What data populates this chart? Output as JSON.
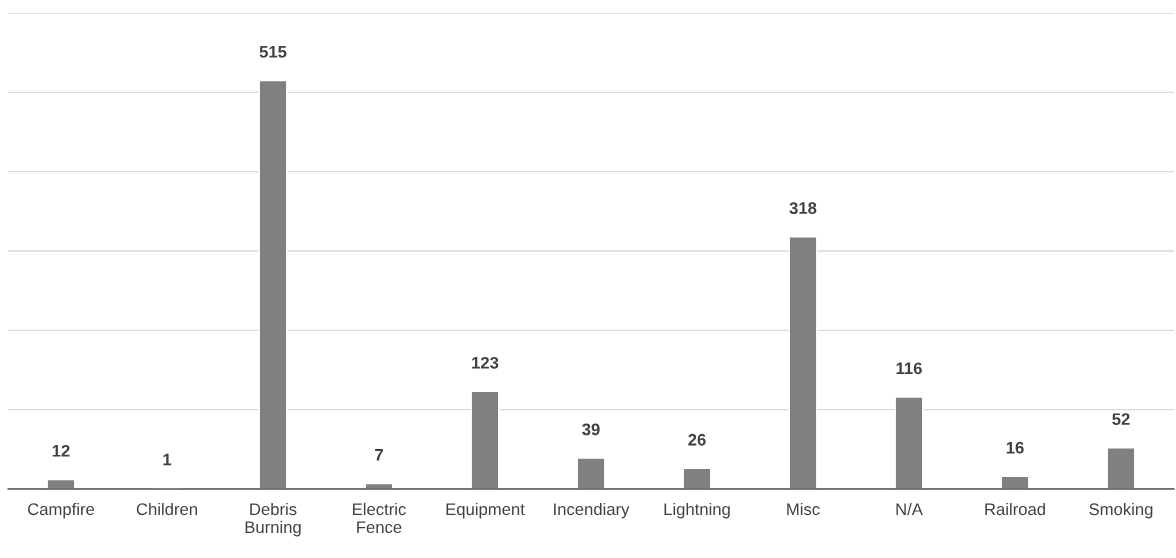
{
  "chart_data": {
    "type": "bar",
    "categories": [
      "Campfire",
      "Children",
      "Debris Burning",
      "Electric Fence",
      "Equipment",
      "Incendiary",
      "Lightning",
      "Misc",
      "N/A",
      "Railroad",
      "Smoking"
    ],
    "values": [
      12,
      1,
      515,
      7,
      123,
      39,
      26,
      318,
      116,
      16,
      52
    ],
    "color": "#808080",
    "ylim": [
      0,
      600
    ],
    "yticks": [
      {
        "value": 0,
        "label": null
      },
      {
        "value": 100,
        "label": null
      },
      {
        "value": 200,
        "label": null
      },
      {
        "value": 300,
        "label": null
      },
      {
        "value": 400,
        "label": null
      },
      {
        "value": 500,
        "label": null
      },
      {
        "value": 600,
        "label": null
      }
    ],
    "grid": "y",
    "data_labels": true,
    "tick_labels": "x"
  }
}
